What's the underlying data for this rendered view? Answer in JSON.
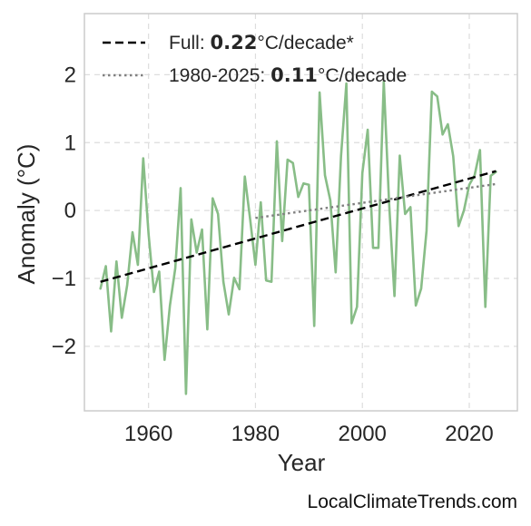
{
  "chart_data": {
    "type": "line",
    "xlabel": "Year",
    "ylabel": "Anomaly (°C)",
    "xlim": [
      1948,
      2029
    ],
    "ylim": [
      -2.95,
      2.9
    ],
    "xticks": [
      1960,
      1980,
      2000,
      2020
    ],
    "yticks": [
      -2,
      -1,
      0,
      1,
      2
    ],
    "ytick_labels": [
      "−2",
      "−1",
      "0",
      "1",
      "2"
    ],
    "grid": true,
    "legend_position": "top-left",
    "series": [
      {
        "style": "solid",
        "color": "#88bd87",
        "x": [
          1951,
          1952,
          1953,
          1954,
          1955,
          1956,
          1957,
          1958,
          1959,
          1960,
          1961,
          1962,
          1963,
          1964,
          1965,
          1966,
          1967,
          1968,
          1969,
          1970,
          1971,
          1972,
          1973,
          1974,
          1975,
          1976,
          1977,
          1978,
          1979,
          1980,
          1981,
          1982,
          1983,
          1984,
          1985,
          1986,
          1987,
          1988,
          1989,
          1990,
          1991,
          1992,
          1993,
          1994,
          1995,
          1996,
          1997,
          1998,
          1999,
          2000,
          2001,
          2002,
          2003,
          2004,
          2005,
          2006,
          2007,
          2008,
          2009,
          2010,
          2011,
          2012,
          2013,
          2014,
          2015,
          2016,
          2017,
          2018,
          2019,
          2020,
          2021,
          2022,
          2023,
          2024,
          2025
        ],
        "values": [
          -1.15,
          -0.82,
          -1.78,
          -0.75,
          -1.58,
          -1.1,
          -0.32,
          -0.8,
          0.77,
          -0.35,
          -1.2,
          -0.9,
          -2.2,
          -1.4,
          -0.85,
          0.33,
          -2.7,
          -0.13,
          -0.62,
          -0.28,
          -1.75,
          0.18,
          -0.05,
          -1.05,
          -1.53,
          -0.99,
          -1.16,
          0.5,
          -0.13,
          -0.8,
          0.12,
          -1.03,
          -1.05,
          1.02,
          -0.45,
          0.75,
          0.7,
          0.2,
          0.4,
          0.38,
          -1.7,
          1.74,
          0.52,
          0.15,
          -0.91,
          0.8,
          1.87,
          -1.66,
          -1.42,
          0.55,
          1.19,
          -0.55,
          -0.55,
          1.9,
          0.1,
          -1.26,
          0.81,
          -0.05,
          0.05,
          -1.4,
          -1.15,
          -0.3,
          1.75,
          1.68,
          1.12,
          1.27,
          0.8,
          -0.23,
          0.0,
          0.38,
          0.52,
          0.89,
          -1.42,
          0.51,
          0.57
        ]
      }
    ],
    "trends": [
      {
        "style": "dashed",
        "color": "#000000",
        "x": [
          1951,
          2025
        ],
        "y": [
          -1.05,
          0.58
        ]
      },
      {
        "style": "dotted",
        "color": "#808080",
        "x": [
          1980,
          2025
        ],
        "y": [
          -0.11,
          0.39
        ]
      }
    ],
    "legend": [
      {
        "style": "dashed",
        "prefix": "Full: ",
        "value": "0.22",
        "suffix": "°C/decade*"
      },
      {
        "style": "dotted",
        "prefix": "1980-2025: ",
        "value": "0.11",
        "suffix": "°C/decade"
      }
    ]
  },
  "watermark": "LocalClimateTrends.com"
}
